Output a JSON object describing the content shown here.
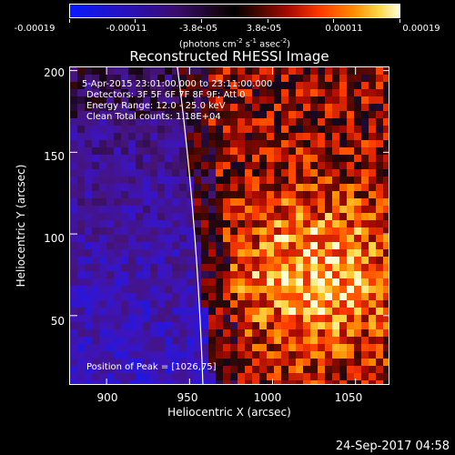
{
  "colorbar": {
    "tick_labels": [
      "-0.00019",
      "-0.00011",
      "-3.8e-05",
      "3.8e-05",
      "0.00011",
      "0.00019"
    ],
    "units_prefix": "(photons cm",
    "units_exp1": "-2",
    "units_mid1": " s",
    "units_exp2": "-1",
    "units_mid2": " asec",
    "units_exp3": "-2",
    "units_suffix": ")"
  },
  "chart_data": {
    "type": "heatmap",
    "title": "Reconstructed RHESSI Image",
    "xlabel": "Heliocentric X (arcsec)",
    "ylabel": "Heliocentric Y (arcsec)",
    "xlim": [
      878,
      1071
    ],
    "ylim": [
      7,
      202
    ],
    "x_ticks": [
      "900",
      "950",
      "1000",
      "1050"
    ],
    "y_ticks": [
      "50",
      "100",
      "150",
      "200"
    ],
    "colormap": "blue-black-red-yellow",
    "peak_position": [
      1026,
      75
    ],
    "limb_color": "#ffffff",
    "annotations": {
      "time_range": "5-Apr-2015 23:01:00.000 to 23:11:00.000",
      "detectors": "Detectors: 3F 5F 6F 7F 8F 9F; Att 0",
      "energy": "Energy Range: 12.0 - 25.0 keV",
      "method": "Clean     Total counts: 1.18E+04",
      "peak": "Position of Peak = [1026,75]"
    }
  },
  "timestamp": "24-Sep-2017 04:58"
}
